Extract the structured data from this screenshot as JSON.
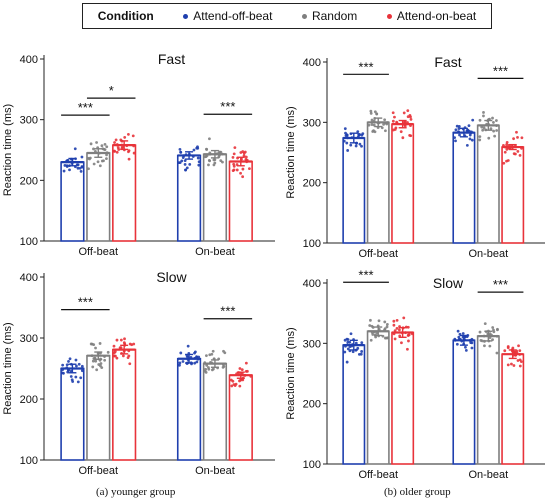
{
  "legend": {
    "title": "Condition",
    "items": [
      {
        "label": "Attend-off-beat",
        "color": "#1f3fae"
      },
      {
        "label": "Random",
        "color": "#7f7f7f"
      },
      {
        "label": "Attend-on-beat",
        "color": "#e8333a"
      }
    ]
  },
  "captions": {
    "left": "(a) younger group",
    "right": "(b) older group"
  },
  "chart_data": [
    {
      "id": "younger-fast",
      "type": "bar",
      "title": "Fast",
      "xlabel": "",
      "ylabel": "Reaction time (ms)",
      "ylim": [
        100,
        400
      ],
      "yticks": [
        100,
        200,
        300,
        400
      ],
      "categories": [
        "Off-beat",
        "On-beat"
      ],
      "series": [
        {
          "name": "Attend-off-beat",
          "values": [
            230,
            241
          ],
          "sem": [
            6,
            6
          ]
        },
        {
          "name": "Random",
          "values": [
            245,
            243
          ],
          "sem": [
            7,
            6
          ]
        },
        {
          "name": "Attend-on-beat",
          "values": [
            258,
            231
          ],
          "sem": [
            7,
            7
          ]
        }
      ],
      "significance": [
        {
          "category": 0,
          "from": 0,
          "to": 1,
          "label": "***"
        },
        {
          "category": 0,
          "from": 1,
          "to": 2,
          "label": "*"
        },
        {
          "category": 1,
          "from": 1,
          "to": 2,
          "label": "***"
        }
      ]
    },
    {
      "id": "older-fast",
      "type": "bar",
      "title": "Fast",
      "xlabel": "",
      "ylabel": "Reaction time (ms)",
      "ylim": [
        100,
        400
      ],
      "yticks": [
        100,
        200,
        300,
        400
      ],
      "categories": [
        "Off-beat",
        "On-beat"
      ],
      "series": [
        {
          "name": "Attend-off-beat",
          "values": [
            274,
            283
          ],
          "sem": [
            8,
            7
          ]
        },
        {
          "name": "Random",
          "values": [
            300,
            295
          ],
          "sem": [
            7,
            8
          ]
        },
        {
          "name": "Attend-on-beat",
          "values": [
            297,
            259
          ],
          "sem": [
            6,
            4
          ]
        }
      ],
      "significance": [
        {
          "category": 0,
          "from": 0,
          "to": 1,
          "label": "***"
        },
        {
          "category": 1,
          "from": 1,
          "to": 2,
          "label": "***"
        }
      ]
    },
    {
      "id": "younger-slow",
      "type": "bar",
      "title": "Slow",
      "xlabel": "",
      "ylabel": "Reaction time (ms)",
      "ylim": [
        100,
        400
      ],
      "yticks": [
        100,
        200,
        300,
        400
      ],
      "categories": [
        "Off-beat",
        "On-beat"
      ],
      "series": [
        {
          "name": "Attend-off-beat",
          "values": [
            250,
            266
          ],
          "sem": [
            7,
            7
          ]
        },
        {
          "name": "Random",
          "values": [
            271,
            258
          ],
          "sem": [
            6,
            6
          ]
        },
        {
          "name": "Attend-on-beat",
          "values": [
            281,
            239
          ],
          "sem": [
            7,
            5
          ]
        }
      ],
      "significance": [
        {
          "category": 0,
          "from": 0,
          "to": 1,
          "label": "***"
        },
        {
          "category": 1,
          "from": 1,
          "to": 2,
          "label": "***"
        }
      ]
    },
    {
      "id": "older-slow",
      "type": "bar",
      "title": "Slow",
      "xlabel": "",
      "ylabel": "Reaction time (ms)",
      "ylim": [
        100,
        400
      ],
      "yticks": [
        100,
        200,
        300,
        400
      ],
      "categories": [
        "Off-beat",
        "On-beat"
      ],
      "series": [
        {
          "name": "Attend-off-beat",
          "values": [
            297,
            305
          ],
          "sem": [
            8,
            8
          ]
        },
        {
          "name": "Random",
          "values": [
            320,
            312
          ],
          "sem": [
            7,
            8
          ]
        },
        {
          "name": "Attend-on-beat",
          "values": [
            318,
            282
          ],
          "sem": [
            8,
            7
          ]
        }
      ],
      "significance": [
        {
          "category": 0,
          "from": 0,
          "to": 1,
          "label": "***"
        },
        {
          "category": 1,
          "from": 1,
          "to": 2,
          "label": "***"
        }
      ]
    }
  ]
}
